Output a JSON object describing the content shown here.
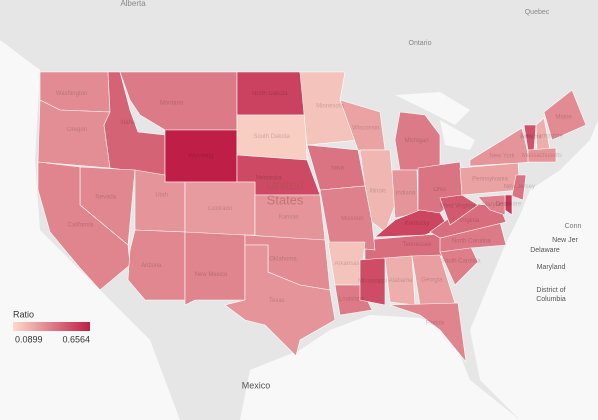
{
  "chart_data": {
    "type": "choropleth",
    "legend_title": "Ratio",
    "range": [
      0.0899,
      0.6564
    ],
    "colors": [
      "#fcdacb",
      "#bf1f46"
    ],
    "places": [
      "Alberta",
      "Quebec",
      "Ontario",
      "United",
      "States",
      "Mexico",
      "Conn",
      "New Jer",
      "Delaware",
      "Maryland",
      "District of",
      "Columbia"
    ],
    "regions": [
      {
        "name": "Washington",
        "value": 0.33
      },
      {
        "name": "Oregon",
        "value": 0.32
      },
      {
        "name": "Idaho",
        "value": 0.45
      },
      {
        "name": "Montana",
        "value": 0.38
      },
      {
        "name": "Wyoming",
        "value": 0.6564
      },
      {
        "name": "North Dakota",
        "value": 0.55
      },
      {
        "name": "South Dakota",
        "value": 0.13
      },
      {
        "name": "Nebraska",
        "value": 0.53
      },
      {
        "name": "Minnesota",
        "value": 0.16
      },
      {
        "name": "Wisconsin",
        "value": 0.26
      },
      {
        "name": "Michigan",
        "value": 0.38
      },
      {
        "name": "Iowa",
        "value": 0.4
      },
      {
        "name": "Illinois",
        "value": 0.2
      },
      {
        "name": "Indiana",
        "value": 0.3
      },
      {
        "name": "Ohio",
        "value": 0.4
      },
      {
        "name": "Kentucky",
        "value": 0.54
      },
      {
        "name": "Tennessee",
        "value": 0.42
      },
      {
        "name": "Nevada",
        "value": 0.34
      },
      {
        "name": "California",
        "value": 0.35
      },
      {
        "name": "Utah",
        "value": 0.3
      },
      {
        "name": "Colorado",
        "value": 0.28
      },
      {
        "name": "Arizona",
        "value": 0.34
      },
      {
        "name": "New Mexico",
        "value": 0.35
      },
      {
        "name": "Kansas",
        "value": 0.3
      },
      {
        "name": "Oklahoma",
        "value": 0.33
      },
      {
        "name": "Texas",
        "value": 0.3
      },
      {
        "name": "Missouri",
        "value": 0.36
      },
      {
        "name": "Arkansas",
        "value": 0.16
      },
      {
        "name": "Louisiana",
        "value": 0.38
      },
      {
        "name": "Mississippi",
        "value": 0.52
      },
      {
        "name": "Alabama",
        "value": 0.22
      },
      {
        "name": "Georgia",
        "value": 0.27
      },
      {
        "name": "Florida",
        "value": 0.35
      },
      {
        "name": "South Carolina",
        "value": 0.37
      },
      {
        "name": "North Carolina",
        "value": 0.38
      },
      {
        "name": "Virginia",
        "value": 0.42
      },
      {
        "name": "West Virginia",
        "value": 0.48
      },
      {
        "name": "Pennsylvania",
        "value": 0.26
      },
      {
        "name": "New York",
        "value": 0.3
      },
      {
        "name": "Vermont",
        "value": 0.5
      },
      {
        "name": "New Hampshire",
        "value": 0.22
      },
      {
        "name": "Maine",
        "value": 0.33
      },
      {
        "name": "Massachusetts",
        "value": 0.3
      },
      {
        "name": "New Jersey",
        "value": 0.4
      },
      {
        "name": "Delaware",
        "value": 0.58
      },
      {
        "name": "Maryland",
        "value": 0.36
      }
    ]
  }
}
